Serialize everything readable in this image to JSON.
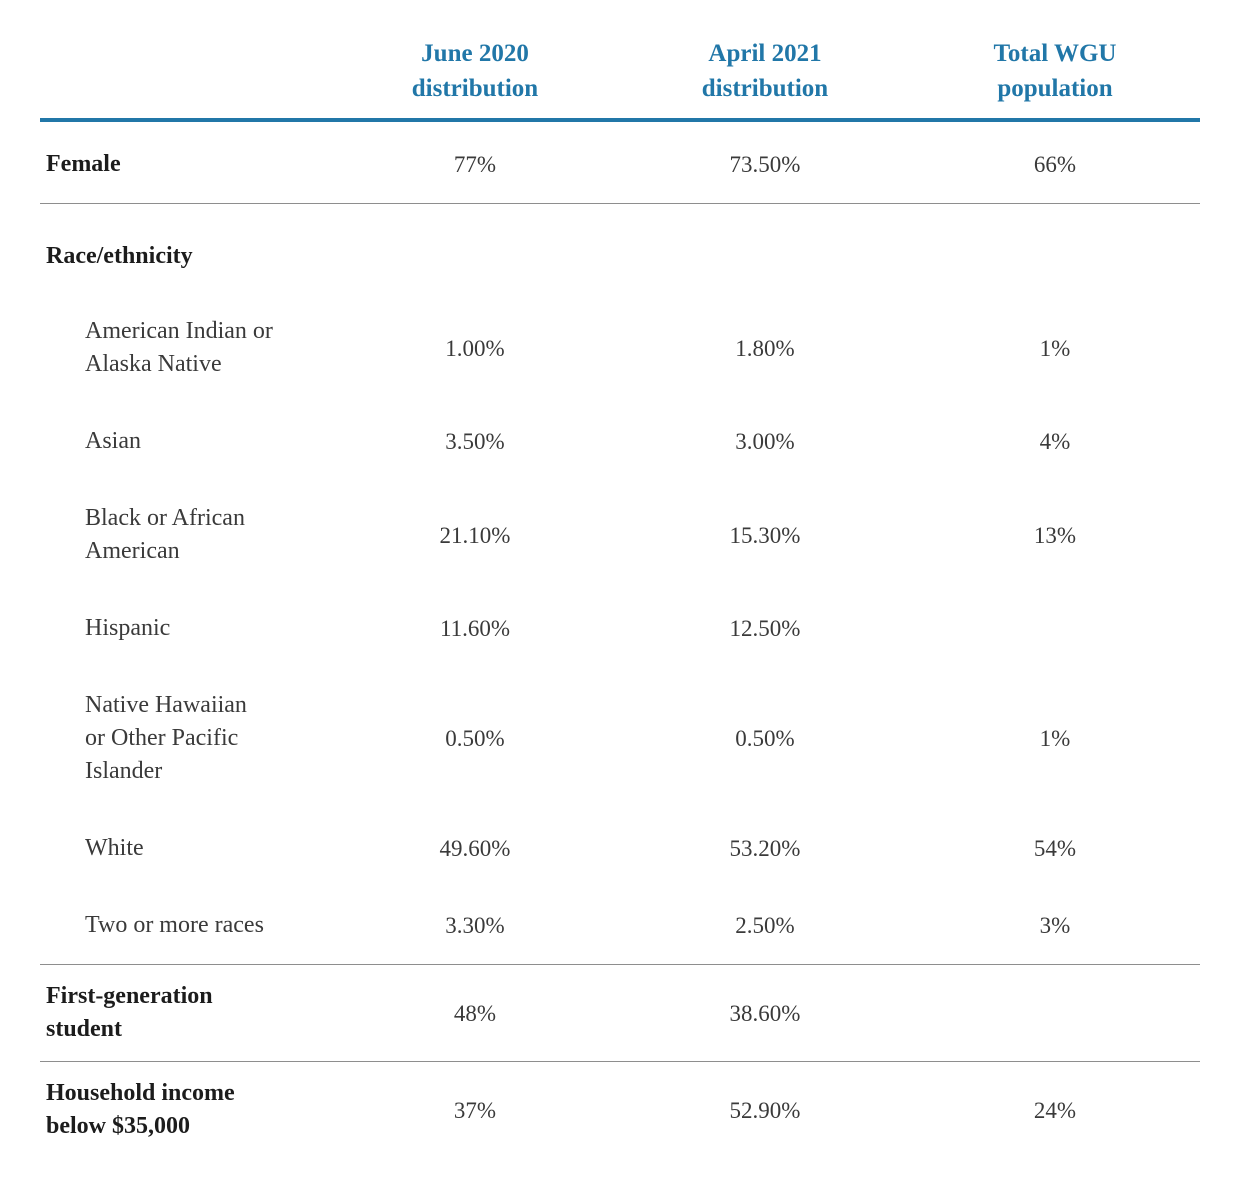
{
  "chart_data": {
    "type": "table",
    "title": "",
    "columns": [
      "June 2020 distribution",
      "April 2021 distribution",
      "Total WGU population"
    ],
    "rows": [
      {
        "label": "Female",
        "values": [
          "77%",
          "73.50%",
          "66%"
        ]
      },
      {
        "label": "Race/ethnicity",
        "values": [
          "",
          "",
          ""
        ]
      },
      {
        "label": "American Indian or Alaska Native",
        "values": [
          "1.00%",
          "1.80%",
          "1%"
        ]
      },
      {
        "label": "Asian",
        "values": [
          "3.50%",
          "3.00%",
          "4%"
        ]
      },
      {
        "label": "Black or African American",
        "values": [
          "21.10%",
          "15.30%",
          "13%"
        ]
      },
      {
        "label": "Hispanic",
        "values": [
          "11.60%",
          "12.50%",
          ""
        ]
      },
      {
        "label": "Native Hawaiian or Other Pacific Islander",
        "values": [
          "0.50%",
          "0.50%",
          "1%"
        ]
      },
      {
        "label": "White",
        "values": [
          "49.60%",
          "53.20%",
          "54%"
        ]
      },
      {
        "label": "Two or more races",
        "values": [
          "3.30%",
          "2.50%",
          "3%"
        ]
      },
      {
        "label": "First-generation student",
        "values": [
          "48%",
          "38.60%",
          ""
        ]
      },
      {
        "label": "Household income below $35,000",
        "values": [
          "37%",
          "52.90%",
          "24%"
        ]
      }
    ]
  },
  "display": {
    "columns": [
      "June 2020\ndistribution",
      "April 2021\ndistribution",
      "Total WGU\npopulation"
    ],
    "row_labels": [
      "Female",
      "Race/ethnicity",
      "American Indian or\nAlaska Native",
      "Asian",
      "Black or African\nAmerican",
      "Hispanic",
      "Native Hawaiian\nor Other Pacific\nIslander",
      "White",
      "Two or more races",
      "First-generation\nstudent",
      "Household income\nbelow $35,000"
    ]
  },
  "colors": {
    "accent": "#2177a8",
    "rule": "#8e8e8e",
    "text": "#3a3a3a",
    "label_bold": "#1c1c1c"
  }
}
